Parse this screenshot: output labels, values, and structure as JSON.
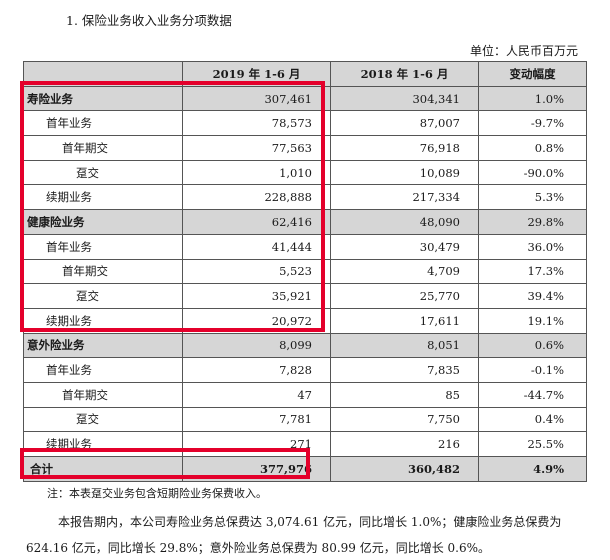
{
  "heading": "1. 保险业务收入业务分项数据",
  "unit": "单位：人民币百万元",
  "columns": [
    "",
    "2019 年 1-6 月",
    "2018 年 1-6 月",
    "变动幅度"
  ],
  "rows": [
    {
      "label": "寿险业务",
      "level": 0,
      "v2019": "307,461",
      "v2018": "304,341",
      "change": "1.0%"
    },
    {
      "label": "首年业务",
      "level": 1,
      "v2019": "78,573",
      "v2018": "87,007",
      "change": "-9.7%"
    },
    {
      "label": "首年期交",
      "level": 2,
      "v2019": "77,563",
      "v2018": "76,918",
      "change": "0.8%"
    },
    {
      "label": "趸交",
      "level": 3,
      "v2019": "1,010",
      "v2018": "10,089",
      "change": "-90.0%"
    },
    {
      "label": "续期业务",
      "level": 1,
      "v2019": "228,888",
      "v2018": "217,334",
      "change": "5.3%"
    },
    {
      "label": "健康险业务",
      "level": 0,
      "v2019": "62,416",
      "v2018": "48,090",
      "change": "29.8%"
    },
    {
      "label": "首年业务",
      "level": 1,
      "v2019": "41,444",
      "v2018": "30,479",
      "change": "36.0%"
    },
    {
      "label": "首年期交",
      "level": 2,
      "v2019": "5,523",
      "v2018": "4,709",
      "change": "17.3%"
    },
    {
      "label": "趸交",
      "level": 3,
      "v2019": "35,921",
      "v2018": "25,770",
      "change": "39.4%"
    },
    {
      "label": "续期业务",
      "level": 1,
      "v2019": "20,972",
      "v2018": "17,611",
      "change": "19.1%"
    },
    {
      "label": "意外险业务",
      "level": 0,
      "v2019": "8,099",
      "v2018": "8,051",
      "change": "0.6%"
    },
    {
      "label": "首年业务",
      "level": 1,
      "v2019": "7,828",
      "v2018": "7,835",
      "change": "-0.1%"
    },
    {
      "label": "首年期交",
      "level": 2,
      "v2019": "47",
      "v2018": "85",
      "change": "-44.7%"
    },
    {
      "label": "趸交",
      "level": 3,
      "v2019": "7,781",
      "v2018": "7,750",
      "change": "0.4%"
    },
    {
      "label": "续期业务",
      "level": 1,
      "v2019": "271",
      "v2018": "216",
      "change": "25.5%"
    }
  ],
  "total": {
    "label": "合计",
    "v2019": "377,976",
    "v2018": "360,482",
    "change": "4.9%"
  },
  "note": "注：本表趸交业务包含短期险业务保费收入。",
  "paragraph": {
    "line1": "本报告期内，本公司寿险业务总保费达 3,074.61 亿元，同比增长 1.0%；健康险业务总保费为",
    "line2": "624.16 亿元，同比增长 29.8%；意外险业务总保费为 80.99 亿元，同比增长 0.6%。"
  },
  "highlight_color": "#e4002b"
}
